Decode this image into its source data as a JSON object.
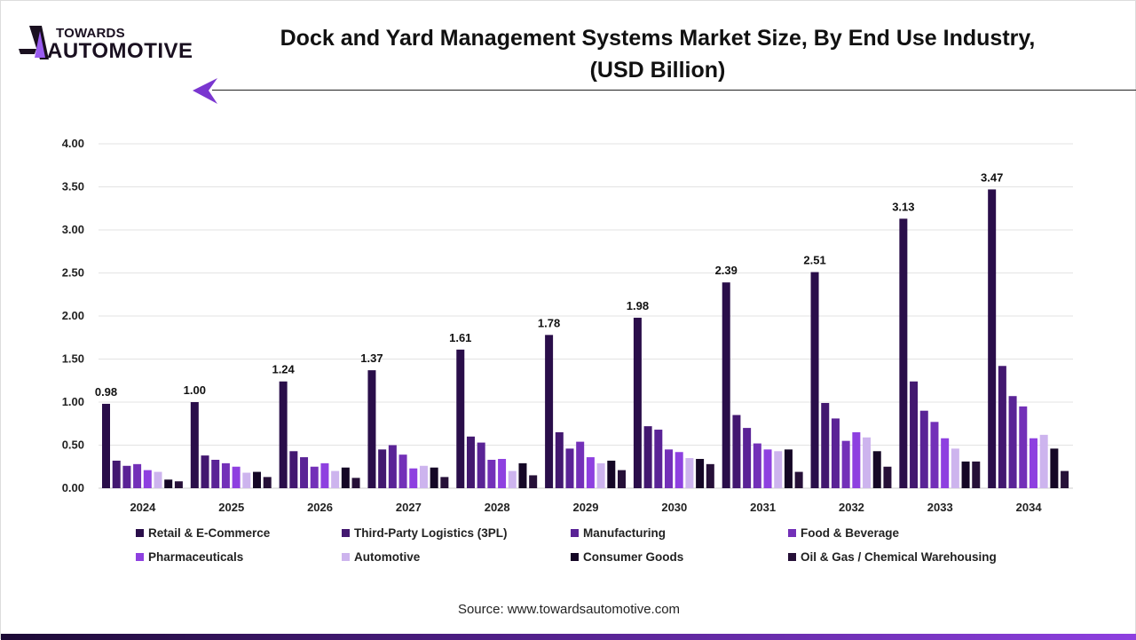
{
  "logo": {
    "line1": "TOWARDS",
    "line2": "AUTOMOTIVE"
  },
  "header": {
    "title_line1": "Dock and Yard Management Systems Market Size, By End Use Industry,",
    "title_line2": "(USD Billion)"
  },
  "source": "Source: www.towardsautomotive.com",
  "chart_data": {
    "type": "bar",
    "title": "Dock and Yard Management Systems Market Size, By End Use Industry, (USD Billion)",
    "categories": [
      "2024",
      "2025",
      "2026",
      "2027",
      "2028",
      "2029",
      "2030",
      "2031",
      "2032",
      "2033",
      "2034"
    ],
    "ylim": [
      0,
      4
    ],
    "yticks": [
      "0.00",
      "0.50",
      "1.00",
      "1.50",
      "2.00",
      "2.50",
      "3.00",
      "3.50",
      "4.00"
    ],
    "grid": true,
    "legend_position": "bottom",
    "series": [
      {
        "name": "Retail & E-Commerce",
        "color": "#2a0e4a",
        "values": [
          0.98,
          1.0,
          1.24,
          1.37,
          1.61,
          1.78,
          1.98,
          2.39,
          2.51,
          3.13,
          3.47
        ],
        "labels": [
          "0.98",
          "1.00",
          "1.24",
          "1.37",
          "1.61",
          "1.78",
          "1.98",
          "2.39",
          "2.51",
          "3.13",
          "3.47"
        ]
      },
      {
        "name": "Third-Party Logistics (3PL)",
        "color": "#431870",
        "values": [
          0.32,
          0.38,
          0.43,
          0.45,
          0.6,
          0.65,
          0.72,
          0.85,
          0.99,
          1.24,
          1.42
        ]
      },
      {
        "name": "Manufacturing",
        "color": "#5a2396",
        "values": [
          0.26,
          0.33,
          0.36,
          0.5,
          0.53,
          0.46,
          0.68,
          0.7,
          0.81,
          0.9,
          1.07
        ]
      },
      {
        "name": "Food & Beverage",
        "color": "#7330b8",
        "values": [
          0.28,
          0.29,
          0.25,
          0.39,
          0.33,
          0.54,
          0.45,
          0.52,
          0.55,
          0.77,
          0.95
        ]
      },
      {
        "name": "Pharmaceuticals",
        "color": "#8e40e0",
        "values": [
          0.21,
          0.25,
          0.29,
          0.23,
          0.34,
          0.36,
          0.42,
          0.45,
          0.65,
          0.58,
          0.58
        ]
      },
      {
        "name": "Automotive",
        "color": "#cdb4ee",
        "values": [
          0.19,
          0.18,
          0.2,
          0.26,
          0.2,
          0.29,
          0.35,
          0.43,
          0.59,
          0.46,
          0.62
        ]
      },
      {
        "name": "Consumer Goods",
        "color": "#150726",
        "values": [
          0.1,
          0.19,
          0.24,
          0.24,
          0.29,
          0.32,
          0.34,
          0.45,
          0.43,
          0.31,
          0.46
        ]
      },
      {
        "name": "Oil & Gas / Chemical Warehousing",
        "color": "#261038",
        "values": [
          0.08,
          0.13,
          0.12,
          0.13,
          0.15,
          0.21,
          0.28,
          0.19,
          0.25,
          0.31,
          0.2
        ]
      }
    ]
  }
}
